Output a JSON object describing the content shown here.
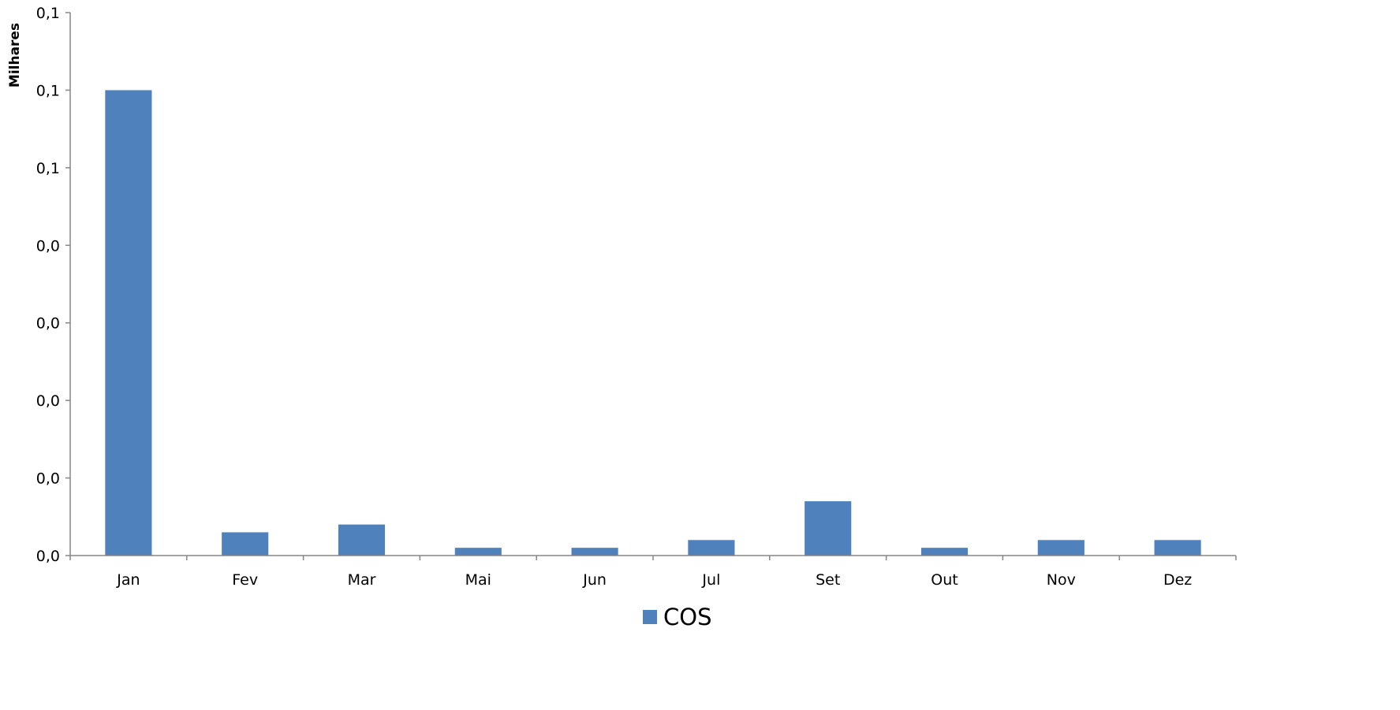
{
  "chart_data": {
    "type": "bar",
    "title": "",
    "xlabel": "",
    "ylabel": "Milhares",
    "categories": [
      "Jan",
      "Fev",
      "Mar",
      "Mai",
      "Jun",
      "Jul",
      "Set",
      "Out",
      "Nov",
      "Dez"
    ],
    "series": [
      {
        "name": "COS",
        "values": [
          0.12,
          0.006,
          0.008,
          0.002,
          0.002,
          0.004,
          0.014,
          0.002,
          0.004,
          0.004
        ]
      }
    ],
    "yticks": [
      0,
      0.02,
      0.04,
      0.06,
      0.08,
      0.1,
      0.12,
      0.14
    ],
    "ytick_labels": [
      "0,0",
      "0,0",
      "0,0",
      "0,0",
      "0,0",
      "0,1",
      "0,1",
      "0,1"
    ],
    "ylim": [
      0,
      0.14
    ],
    "grid": false,
    "legend_position": "bottom-center",
    "colors": {
      "bar": "#4F81BD",
      "axis": "#868686"
    }
  }
}
